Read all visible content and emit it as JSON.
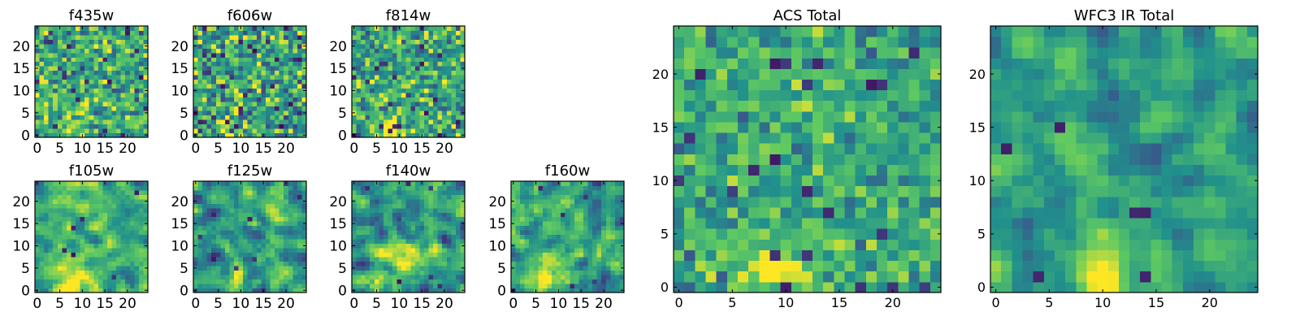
{
  "figure": {
    "colormap": "viridis",
    "colormap_stops": [
      "#440154",
      "#3b528b",
      "#21918c",
      "#5ec962",
      "#fde725"
    ],
    "background": "#ffffff"
  },
  "chart_data": [
    {
      "type": "heatmap",
      "title": "f435w",
      "grid_size": 25,
      "xlim": [
        -0.5,
        24.5
      ],
      "ylim": [
        -0.5,
        24.5
      ],
      "xticks": [
        0,
        5,
        10,
        15,
        20
      ],
      "yticks": [
        0,
        5,
        10,
        15,
        20
      ],
      "values_description": "pixel noise image (25x25), mostly green/yellow with scattered dark pixels",
      "seed": 11,
      "smooth": 0,
      "mean": 0.62,
      "spread": 0.55,
      "blob": [
        8,
        2,
        3,
        0.2
      ]
    },
    {
      "type": "heatmap",
      "title": "f606w",
      "grid_size": 25,
      "xlim": [
        -0.5,
        24.5
      ],
      "ylim": [
        -0.5,
        24.5
      ],
      "xticks": [
        0,
        5,
        10,
        15,
        20
      ],
      "yticks": [
        0,
        5,
        10,
        15,
        20
      ],
      "values_description": "pixel noise image (25x25) with many dark pixels",
      "seed": 23,
      "smooth": 0,
      "mean": 0.58,
      "spread": 0.65,
      "blob": [
        8,
        1,
        3,
        0.3
      ]
    },
    {
      "type": "heatmap",
      "title": "f814w",
      "grid_size": 25,
      "xlim": [
        -0.5,
        24.5
      ],
      "ylim": [
        -0.5,
        24.5
      ],
      "xticks": [
        0,
        5,
        10,
        15,
        20
      ],
      "yticks": [
        0,
        5,
        10,
        15,
        20
      ],
      "values_description": "pixel noise image (25x25) with bright source near bottom center",
      "seed": 37,
      "smooth": 0,
      "mean": 0.6,
      "spread": 0.55,
      "blob": [
        8,
        1,
        3,
        0.5
      ]
    },
    {
      "type": "heatmap",
      "title": "f105w",
      "grid_size": 25,
      "xlim": [
        -0.5,
        24.5
      ],
      "ylim": [
        -0.5,
        24.5
      ],
      "xticks": [
        0,
        5,
        10,
        15,
        20
      ],
      "yticks": [
        0,
        5,
        10,
        15,
        20
      ],
      "values_description": "smoothed noise image (25x25) with bright source near bottom center",
      "seed": 41,
      "smooth": 1,
      "mean": 0.62,
      "spread": 0.5,
      "blob": [
        8,
        2,
        4,
        0.45
      ]
    },
    {
      "type": "heatmap",
      "title": "f125w",
      "grid_size": 25,
      "xlim": [
        -0.5,
        24.5
      ],
      "ylim": [
        -0.5,
        24.5
      ],
      "xticks": [
        0,
        5,
        10,
        15,
        20
      ],
      "yticks": [
        0,
        5,
        10,
        15,
        20
      ],
      "values_description": "smoothed noise image (25x25) with scattered dark blobs",
      "seed": 53,
      "smooth": 1,
      "mean": 0.55,
      "spread": 0.6,
      "blob": [
        8,
        1,
        3,
        0.4
      ]
    },
    {
      "type": "heatmap",
      "title": "f140w",
      "grid_size": 25,
      "xlim": [
        -0.5,
        24.5
      ],
      "ylim": [
        -0.5,
        24.5
      ],
      "xticks": [
        0,
        5,
        10,
        15,
        20
      ],
      "yticks": [
        0,
        5,
        10,
        15,
        20
      ],
      "values_description": "smoothed noise image (25x25) with bright source near center",
      "seed": 67,
      "smooth": 1,
      "mean": 0.57,
      "spread": 0.6,
      "blob": [
        10,
        7,
        4,
        0.45
      ]
    },
    {
      "type": "heatmap",
      "title": "f160w",
      "grid_size": 25,
      "xlim": [
        -0.5,
        24.5
      ],
      "ylim": [
        -0.5,
        24.5
      ],
      "xticks": [
        0,
        5,
        10,
        15,
        20
      ],
      "yticks": [
        0,
        5,
        10,
        15,
        20
      ],
      "values_description": "smoothed noise image (25x25) with bright source near bottom center",
      "seed": 79,
      "smooth": 1,
      "mean": 0.57,
      "spread": 0.6,
      "blob": [
        8,
        3,
        4,
        0.45
      ]
    },
    {
      "type": "heatmap",
      "title": "ACS Total",
      "grid_size": 25,
      "xlim": [
        -0.5,
        24.5
      ],
      "ylim": [
        -0.5,
        24.5
      ],
      "xticks": [
        0,
        5,
        10,
        15,
        20
      ],
      "yticks": [
        0,
        5,
        10,
        15,
        20
      ],
      "values_description": "combined ACS image (25x25), mostly green with bright source at bottom center",
      "seed": 97,
      "smooth": 0,
      "mean": 0.6,
      "spread": 0.4,
      "blob": [
        9,
        1,
        3,
        0.45
      ]
    },
    {
      "type": "heatmap",
      "title": "WFC3 IR Total",
      "grid_size": 25,
      "xlim": [
        -0.5,
        24.5
      ],
      "ylim": [
        -0.5,
        24.5
      ],
      "xticks": [
        0,
        5,
        10,
        15,
        20
      ],
      "yticks": [
        0,
        5,
        10,
        15,
        20
      ],
      "values_description": "combined WFC3 IR image (25x25) with bright sources near center and bottom",
      "seed": 113,
      "smooth": 1,
      "mean": 0.55,
      "spread": 0.45,
      "blob": [
        9,
        1,
        3,
        0.5
      ]
    }
  ]
}
